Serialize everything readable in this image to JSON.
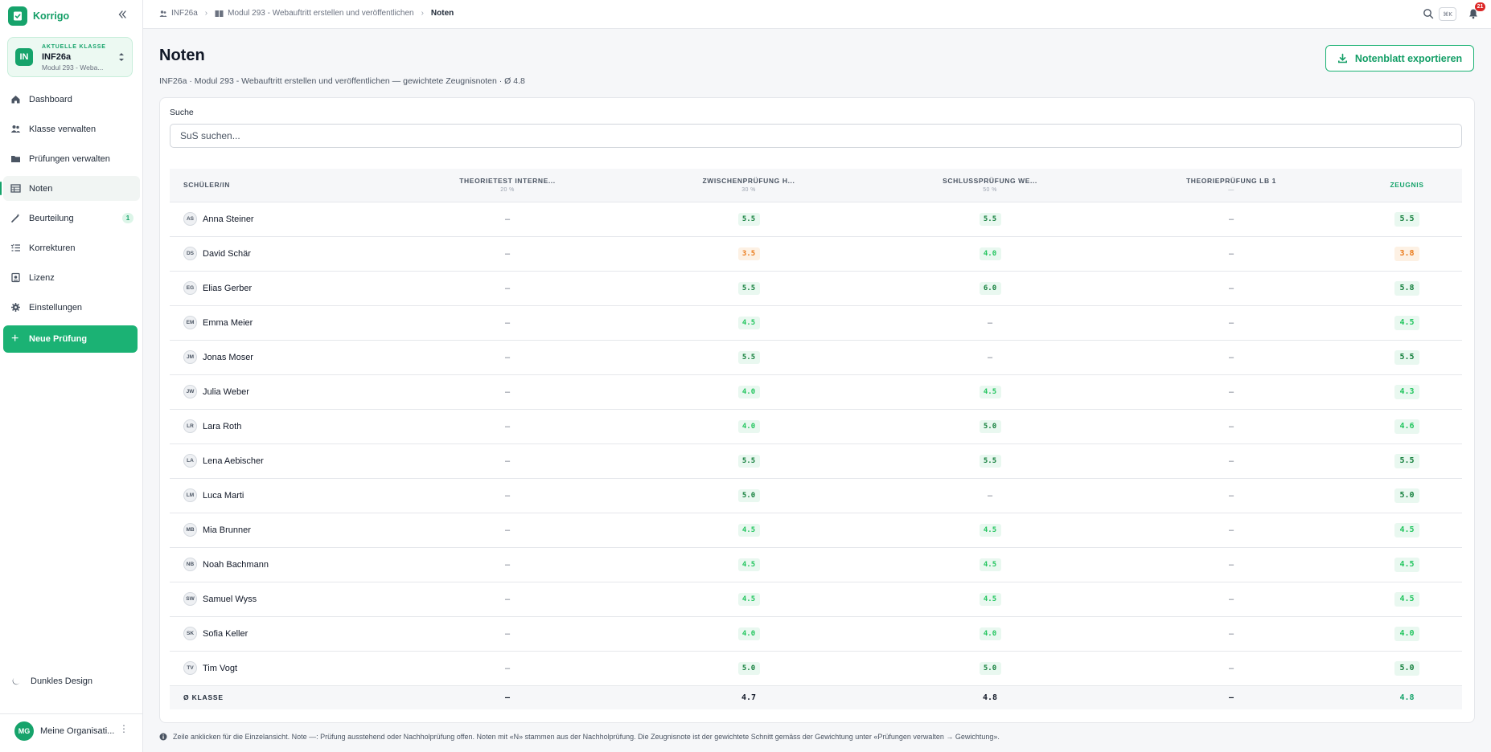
{
  "app": {
    "name": "Korrigo"
  },
  "current_class": {
    "kicker": "AKTUELLE KLASSE",
    "avatar": "IN",
    "name": "INF26a",
    "module": "Modul 293 - Weba..."
  },
  "nav": [
    {
      "label": "Dashboard",
      "icon": "home-icon"
    },
    {
      "label": "Klasse verwalten",
      "icon": "users-icon"
    },
    {
      "label": "Prüfungen verwalten",
      "icon": "folder-icon"
    },
    {
      "label": "Noten",
      "icon": "table-icon",
      "active": true
    },
    {
      "label": "Beurteilung",
      "icon": "wand-icon",
      "badge": "1"
    },
    {
      "label": "Korrekturen",
      "icon": "checklist-icon"
    },
    {
      "label": "Lizenz",
      "icon": "license-icon"
    },
    {
      "label": "Einstellungen",
      "icon": "gear-icon"
    }
  ],
  "new_exam_label": "Neue Prüfung",
  "dark_mode_label": "Dunkles Design",
  "org": {
    "avatar": "MG",
    "name": "Meine Organisati..."
  },
  "breadcrumb": [
    "INF26a",
    "Modul 293 - Webauftritt erstellen und veröffentlichen",
    "Noten"
  ],
  "shortcut": "⌘K",
  "notifications_count": "21",
  "page": {
    "title": "Noten",
    "subtitle": "INF26a · Modul 293 - Webauftritt erstellen und veröffentlichen — gewichtete Zeugnisnoten · Ø 4.8",
    "export_label": "Notenblatt exportieren"
  },
  "search": {
    "label": "Suche",
    "placeholder": "SuS suchen..."
  },
  "table": {
    "columns": [
      {
        "label": "SCHÜLER/IN",
        "weight": ""
      },
      {
        "label": "THEORIETEST INTERNE...",
        "weight": "20 %"
      },
      {
        "label": "ZWISCHENPRÜFUNG H...",
        "weight": "30 %"
      },
      {
        "label": "SCHLUSSPRÜFUNG WE...",
        "weight": "50 %"
      },
      {
        "label": "THEORIEPRÜFUNG LB 1",
        "weight": "—"
      },
      {
        "label": "ZEUGNIS",
        "weight": ""
      }
    ],
    "rows": [
      {
        "initials": "AS",
        "name": "Anna Steiner",
        "grades": [
          "–",
          "5.5",
          "5.5",
          "–"
        ],
        "zeugnis": "5.5"
      },
      {
        "initials": "DS",
        "name": "David Schär",
        "grades": [
          "–",
          "3.5",
          "4.0",
          "–"
        ],
        "zeugnis": "3.8"
      },
      {
        "initials": "EG",
        "name": "Elias Gerber",
        "grades": [
          "–",
          "5.5",
          "6.0",
          "–"
        ],
        "zeugnis": "5.8"
      },
      {
        "initials": "EM",
        "name": "Emma Meier",
        "grades": [
          "–",
          "4.5",
          "–",
          "–"
        ],
        "zeugnis": "4.5"
      },
      {
        "initials": "JM",
        "name": "Jonas Moser",
        "grades": [
          "–",
          "5.5",
          "–",
          "–"
        ],
        "zeugnis": "5.5"
      },
      {
        "initials": "JW",
        "name": "Julia Weber",
        "grades": [
          "–",
          "4.0",
          "4.5",
          "–"
        ],
        "zeugnis": "4.3"
      },
      {
        "initials": "LR",
        "name": "Lara Roth",
        "grades": [
          "–",
          "4.0",
          "5.0",
          "–"
        ],
        "zeugnis": "4.6"
      },
      {
        "initials": "LA",
        "name": "Lena Aebischer",
        "grades": [
          "–",
          "5.5",
          "5.5",
          "–"
        ],
        "zeugnis": "5.5"
      },
      {
        "initials": "LM",
        "name": "Luca Marti",
        "grades": [
          "–",
          "5.0",
          "–",
          "–"
        ],
        "zeugnis": "5.0"
      },
      {
        "initials": "MB",
        "name": "Mia Brunner",
        "grades": [
          "–",
          "4.5",
          "4.5",
          "–"
        ],
        "zeugnis": "4.5"
      },
      {
        "initials": "NB",
        "name": "Noah Bachmann",
        "grades": [
          "–",
          "4.5",
          "4.5",
          "–"
        ],
        "zeugnis": "4.5"
      },
      {
        "initials": "SW",
        "name": "Samuel Wyss",
        "grades": [
          "–",
          "4.5",
          "4.5",
          "–"
        ],
        "zeugnis": "4.5"
      },
      {
        "initials": "SK",
        "name": "Sofia Keller",
        "grades": [
          "–",
          "4.0",
          "4.0",
          "–"
        ],
        "zeugnis": "4.0"
      },
      {
        "initials": "TV",
        "name": "Tim Vogt",
        "grades": [
          "–",
          "5.0",
          "5.0",
          "–"
        ],
        "zeugnis": "5.0"
      }
    ],
    "average": {
      "label": "Ø KLASSE",
      "values": [
        "–",
        "4.7",
        "4.8",
        "–"
      ],
      "zeugnis": "4.8"
    }
  },
  "footnote": "Zeile anklicken für die Einzelansicht. Note —: Prüfung ausstehend oder Nachholprüfung offen. Noten mit «N» stammen aus der Nachholprüfung. Die Zeugnisnote ist der gewichtete Schnitt gemäss der Gewichtung unter «Prüfungen verwalten → Gewichtung».",
  "colors": {
    "accent": "#16a36b",
    "grade_good": "#15803d",
    "grade_ok": "#22c55e",
    "grade_warn": "#ea7a1a",
    "badge_red": "#dc2626"
  }
}
